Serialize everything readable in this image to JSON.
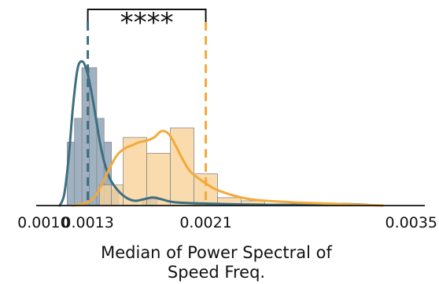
{
  "chart_data": {
    "type": "histogram",
    "xlabel_lines": [
      "Median of Power Spectral of",
      "Speed Freq."
    ],
    "xlim": [
      0.00095,
      0.0035
    ],
    "xticks": [
      {
        "value": 0.001,
        "label": "0.0010"
      },
      {
        "value": 0.0013,
        "label": "0.0013"
      },
      {
        "value": 0.0021,
        "label": "0.0021"
      },
      {
        "value": 0.0035,
        "label": "0.0035"
      }
    ],
    "ylim": [
      0,
      1.0
    ],
    "grid": false,
    "significance": {
      "label": "****",
      "x1": 0.0013,
      "x2": 0.0021
    },
    "colors": {
      "blue": "#3d6e82",
      "blue_fill": "#8fa5b7",
      "orange": "#f4a93a",
      "orange_fill": "#f8d29a",
      "axis": "#111111"
    },
    "series": [
      {
        "color": "#3d6e82",
        "fill": "#8fa5b7",
        "median_line": 0.0013,
        "bins": [
          {
            "x0": 0.00116,
            "x1": 0.00121,
            "h": 0.4
          },
          {
            "x0": 0.00121,
            "x1": 0.00126,
            "h": 0.55
          },
          {
            "x0": 0.00126,
            "x1": 0.00131,
            "h": 0.87
          },
          {
            "x0": 0.00131,
            "x1": 0.00136,
            "h": 0.87
          },
          {
            "x0": 0.00136,
            "x1": 0.00141,
            "h": 0.55
          },
          {
            "x0": 0.00141,
            "x1": 0.00146,
            "h": 0.4
          },
          {
            "x0": 0.00146,
            "x1": 0.00151,
            "h": 0.1
          },
          {
            "x0": 0.00167,
            "x1": 0.00172,
            "h": 0.04
          },
          {
            "x0": 0.00172,
            "x1": 0.00177,
            "h": 0.06
          }
        ],
        "kde": [
          [
            0.00111,
            0.0
          ],
          [
            0.00114,
            0.07
          ],
          [
            0.00117,
            0.3
          ],
          [
            0.0012,
            0.63
          ],
          [
            0.00123,
            0.86
          ],
          [
            0.00126,
            0.91
          ],
          [
            0.00129,
            0.86
          ],
          [
            0.00132,
            0.74
          ],
          [
            0.00135,
            0.58
          ],
          [
            0.00138,
            0.41
          ],
          [
            0.00141,
            0.28
          ],
          [
            0.00145,
            0.17
          ],
          [
            0.0015,
            0.1
          ],
          [
            0.00156,
            0.05
          ],
          [
            0.00162,
            0.03
          ],
          [
            0.00168,
            0.04
          ],
          [
            0.00174,
            0.05
          ],
          [
            0.0018,
            0.04
          ],
          [
            0.0019,
            0.02
          ],
          [
            0.0022,
            0.01
          ],
          [
            0.0026,
            0.005
          ],
          [
            0.003,
            0.01
          ],
          [
            0.0032,
            0.004
          ]
        ]
      },
      {
        "color": "#f4a93a",
        "fill": "#f8d29a",
        "median_line": 0.0021,
        "bins": [
          {
            "x0": 0.00138,
            "x1": 0.00146,
            "h": 0.13
          },
          {
            "x0": 0.00146,
            "x1": 0.00154,
            "h": 0.13
          },
          {
            "x0": 0.00154,
            "x1": 0.0017,
            "h": 0.43
          },
          {
            "x0": 0.0017,
            "x1": 0.00186,
            "h": 0.33
          },
          {
            "x0": 0.00186,
            "x1": 0.00202,
            "h": 0.49
          },
          {
            "x0": 0.00202,
            "x1": 0.00218,
            "h": 0.2
          },
          {
            "x0": 0.00218,
            "x1": 0.00234,
            "h": 0.05
          },
          {
            "x0": 0.00234,
            "x1": 0.0025,
            "h": 0.03
          }
        ],
        "kde": [
          [
            0.0012,
            0.0
          ],
          [
            0.0013,
            0.02
          ],
          [
            0.00135,
            0.06
          ],
          [
            0.0014,
            0.14
          ],
          [
            0.00145,
            0.24
          ],
          [
            0.0015,
            0.32
          ],
          [
            0.00155,
            0.36
          ],
          [
            0.0016,
            0.38
          ],
          [
            0.00165,
            0.4
          ],
          [
            0.0017,
            0.41
          ],
          [
            0.00175,
            0.43
          ],
          [
            0.0018,
            0.47
          ],
          [
            0.00185,
            0.45
          ],
          [
            0.0019,
            0.37
          ],
          [
            0.00195,
            0.28
          ],
          [
            0.002,
            0.21
          ],
          [
            0.0021,
            0.14
          ],
          [
            0.0022,
            0.09
          ],
          [
            0.0024,
            0.04
          ],
          [
            0.0027,
            0.02
          ],
          [
            0.003,
            0.01
          ],
          [
            0.0033,
            0.0
          ]
        ]
      }
    ]
  }
}
